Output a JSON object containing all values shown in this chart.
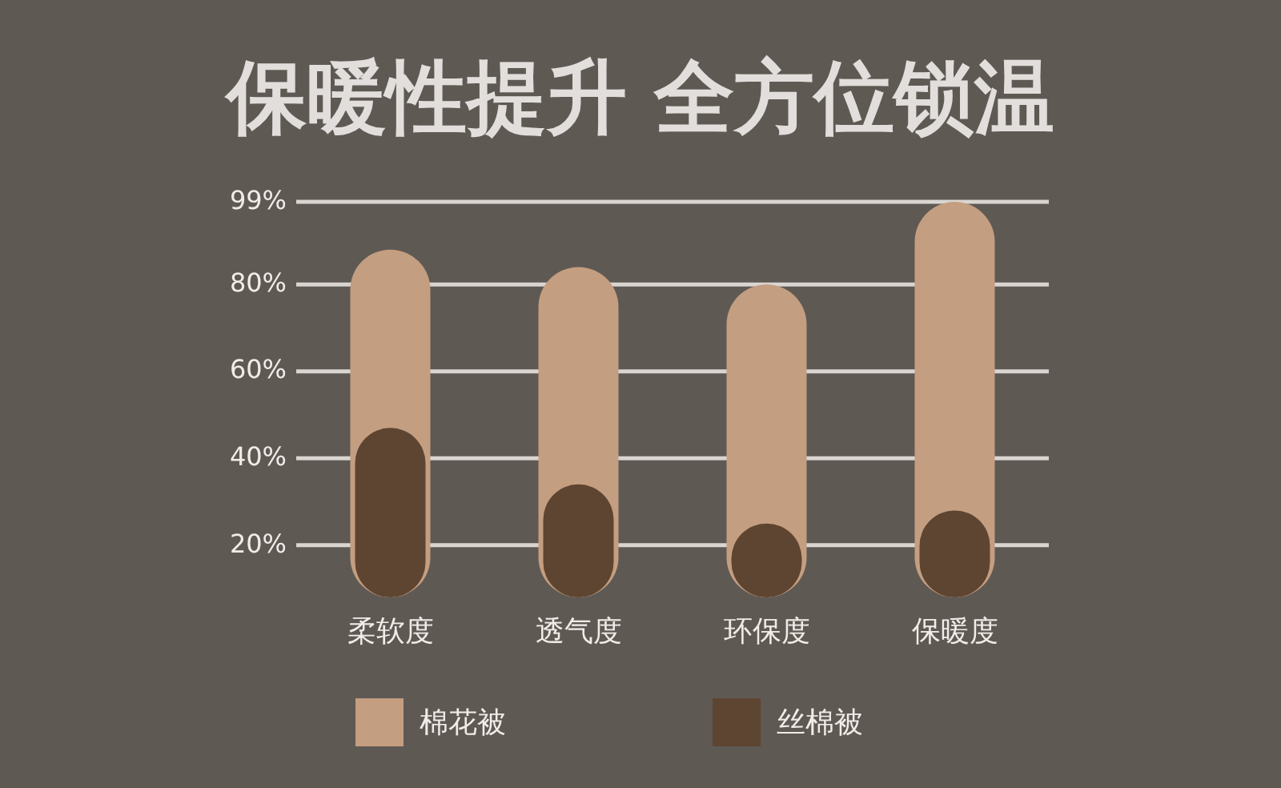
{
  "chart_data": {
    "type": "bar",
    "title": "保暖性提升  全方位锁温",
    "categories": [
      "柔软度",
      "透气度",
      "环保度",
      "保暖度"
    ],
    "series": [
      {
        "name": "棉花被",
        "color": "#c49e80",
        "values": [
          88,
          84,
          80,
          99
        ]
      },
      {
        "name": "丝棉被",
        "color": "#5e4531",
        "values": [
          47,
          34,
          25,
          28
        ]
      }
    ],
    "ylim": [
      8,
      99
    ],
    "yticks": [
      {
        "value": 20,
        "label": "20%"
      },
      {
        "value": 40,
        "label": "40%"
      },
      {
        "value": 60,
        "label": "60%"
      },
      {
        "value": 80,
        "label": "80%"
      },
      {
        "value": 99,
        "label": "99%"
      }
    ],
    "grid": "y",
    "legend": "bottom"
  }
}
